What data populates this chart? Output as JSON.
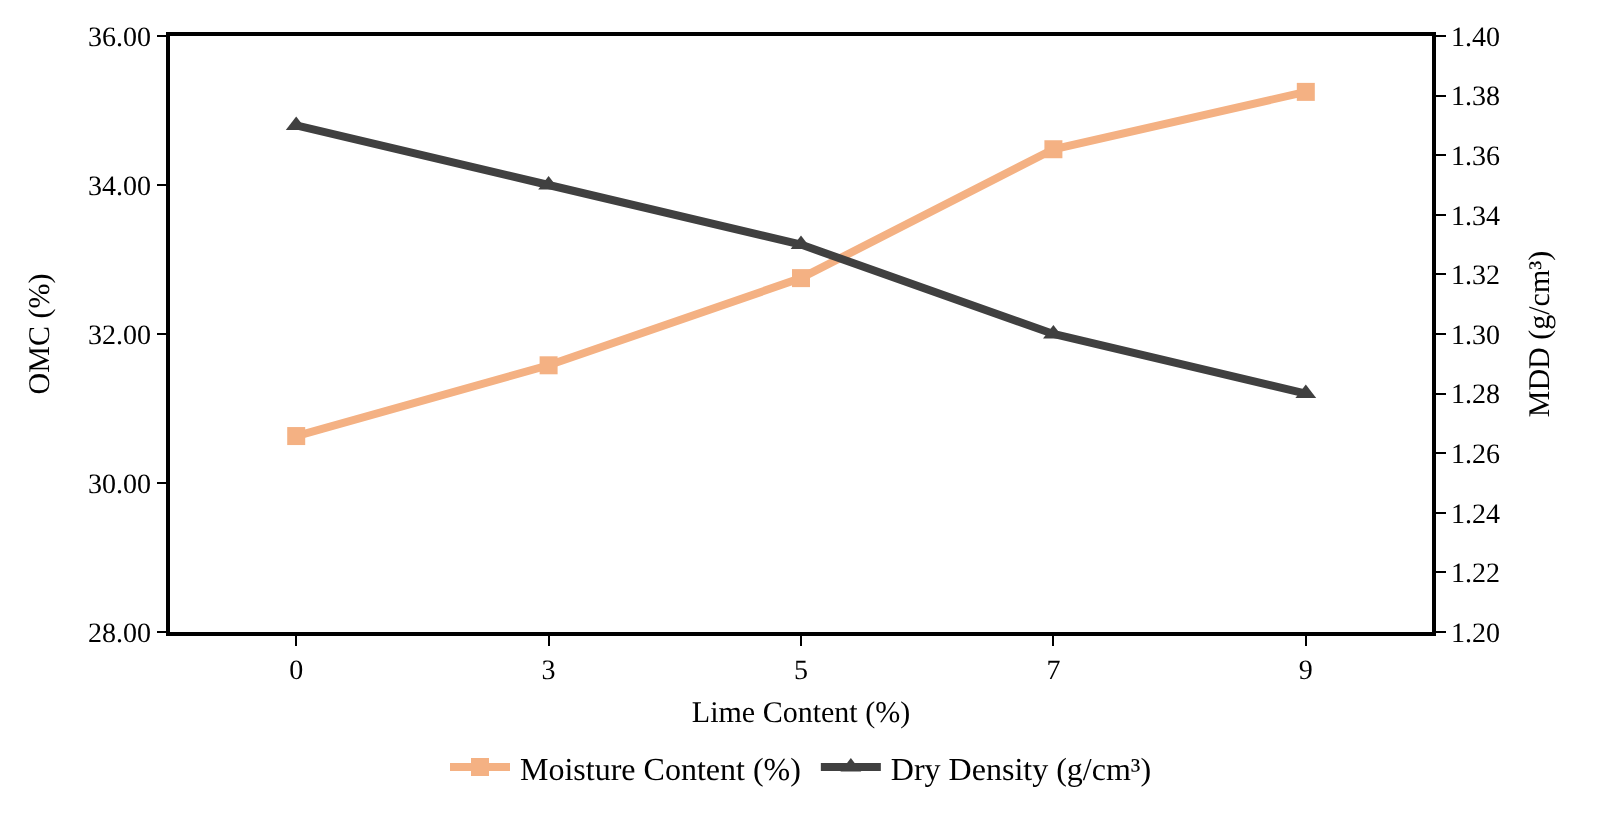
{
  "chart_data": {
    "type": "line",
    "xlabel": "Lime Content (%)",
    "ylabel": "OMC (%)",
    "y2label": "MDD (g/cm³)",
    "categories": [
      "0",
      "3",
      "5",
      "7",
      "9"
    ],
    "series": [
      {
        "name": "Moisture Content (%)",
        "color": "#f4b183",
        "marker": "square",
        "values": [
          30.63,
          31.58,
          32.75,
          34.48,
          35.25
        ]
      },
      {
        "name": "Dry Density (g/cm³)",
        "color": "#404040",
        "marker": "triangle",
        "axis": "y2",
        "values": [
          1.37,
          1.35,
          1.33,
          1.3,
          1.28
        ]
      }
    ],
    "ylim": [
      28,
      36
    ],
    "yticks": [
      {
        "value": 28,
        "label": "28.00"
      },
      {
        "value": 30,
        "label": "30.00"
      },
      {
        "value": 32,
        "label": "32.00"
      },
      {
        "value": 34,
        "label": "34.00"
      },
      {
        "value": 36,
        "label": "36.00"
      }
    ],
    "y2lim": [
      1.2,
      1.4
    ],
    "y2ticks": [
      {
        "value": 1.2,
        "label": "1.20"
      },
      {
        "value": 1.22,
        "label": "1.22"
      },
      {
        "value": 1.24,
        "label": "1.24"
      },
      {
        "value": 1.26,
        "label": "1.26"
      },
      {
        "value": 1.28,
        "label": "1.28"
      },
      {
        "value": 1.3,
        "label": "1.30"
      },
      {
        "value": 1.32,
        "label": "1.32"
      },
      {
        "value": 1.34,
        "label": "1.34"
      },
      {
        "value": 1.36,
        "label": "1.36"
      },
      {
        "value": 1.38,
        "label": "1.38"
      },
      {
        "value": 1.4,
        "label": "1.40"
      }
    ],
    "grid": false,
    "legend": "bottom",
    "line_style": "solid"
  }
}
